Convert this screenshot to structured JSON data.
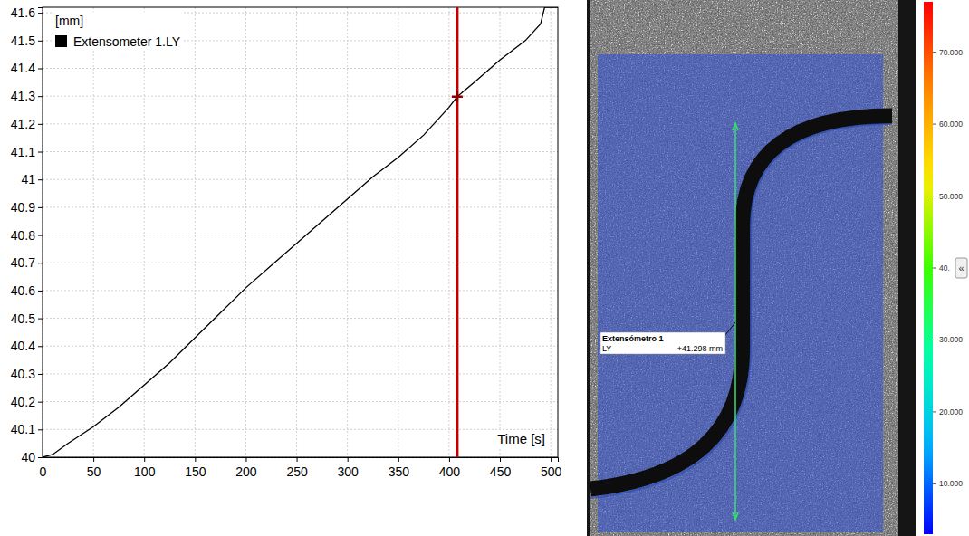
{
  "chart_data": {
    "type": "line",
    "y_label": "[mm]",
    "x_label": "Time [s]",
    "x": [
      0,
      10,
      25,
      50,
      75,
      100,
      125,
      150,
      175,
      200,
      225,
      250,
      275,
      300,
      325,
      350,
      375,
      400,
      408,
      425,
      450,
      475,
      490,
      494,
      500,
      507
    ],
    "series": [
      {
        "name": "Extensometer 1.LY",
        "color": "#000000",
        "values": [
          40.0,
          40.01,
          40.05,
          40.11,
          40.18,
          40.26,
          40.34,
          40.43,
          40.52,
          40.61,
          40.69,
          40.77,
          40.85,
          40.93,
          41.01,
          41.08,
          41.16,
          41.26,
          41.298,
          41.35,
          41.43,
          41.5,
          41.56,
          41.62,
          41.62,
          41.62
        ]
      }
    ],
    "xlim": [
      0,
      507
    ],
    "ylim": [
      40,
      41.62
    ],
    "xticks": [
      0,
      50,
      100,
      150,
      200,
      250,
      300,
      350,
      400,
      450,
      500
    ],
    "yticks": [
      40,
      40.1,
      40.2,
      40.3,
      40.4,
      40.5,
      40.6,
      40.7,
      40.8,
      40.9,
      41,
      41.1,
      41.2,
      41.3,
      41.4,
      41.5,
      41.6
    ],
    "grid": true,
    "legend": "top-left",
    "cursor": {
      "x": 408,
      "y": 41.298
    }
  },
  "image_panel": {
    "extensometer": {
      "title": "Extensómetro 1",
      "component": "LY",
      "value_label": "+41.298 mm"
    },
    "colorbar": {
      "range": [
        3,
        77
      ],
      "ticks": [
        {
          "value": 10,
          "label": "10.000"
        },
        {
          "value": 20,
          "label": "20.000"
        },
        {
          "value": 30,
          "label": "30.000"
        },
        {
          "value": 40,
          "label": "40."
        },
        {
          "value": 50,
          "label": "50.000"
        },
        {
          "value": 60,
          "label": "60.000"
        },
        {
          "value": 70,
          "label": "70.000"
        }
      ]
    },
    "button": "«"
  }
}
